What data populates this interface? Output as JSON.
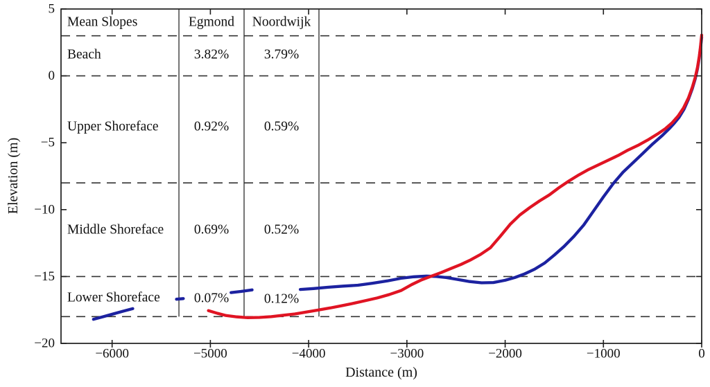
{
  "figure": {
    "xlabel": "Distance (m)",
    "ylabel": "Elevation (m)"
  },
  "colors": {
    "egmond_blue": "#1c22a0",
    "noordwijk_red": "#e01423",
    "axis_black": "#1d1d1d",
    "grid_gray": "#333333"
  },
  "table": {
    "title": "Mean Slopes",
    "columns": [
      {
        "label": "Egmond",
        "color": "#1c22a0"
      },
      {
        "label": "Noordwijk",
        "color": "#e01423"
      }
    ],
    "rows": [
      {
        "zone": "Beach",
        "egmond": "3.82%",
        "noordwijk": "3.79%"
      },
      {
        "zone": "Upper Shoreface",
        "egmond": "0.92%",
        "noordwijk": "0.59%"
      },
      {
        "zone": "Middle Shoreface",
        "egmond": "0.69%",
        "noordwijk": "0.52%"
      },
      {
        "zone": "Lower Shoreface",
        "egmond": "0.07%",
        "noordwijk": "0.12%"
      }
    ]
  },
  "chart_data": {
    "type": "line",
    "title": "",
    "xlabel": "Distance (m)",
    "ylabel": "Elevation (m)",
    "xlim": [
      -6520,
      0
    ],
    "ylim": [
      -20,
      5
    ],
    "xtick_values": [
      -6000,
      -5000,
      -4000,
      -3000,
      -2000,
      -1000,
      0
    ],
    "xtick_labels": [
      "−6000",
      "−5000",
      "−4000",
      "−3000",
      "−2000",
      "−1000",
      "0"
    ],
    "ytick_values": [
      5,
      0,
      -5,
      -10,
      -15,
      -20
    ],
    "ytick_labels": [
      "5",
      "0",
      "−5",
      "−10",
      "−15",
      "−20"
    ],
    "grid_elevations": [
      3,
      0,
      -8,
      -15,
      -18
    ],
    "grid_style": "dashed",
    "legend_position": "none (series identified by colored table header)",
    "table_divider_x": [
      -5320,
      -4657,
      -3895
    ],
    "table_divider_bottom_elevation": -18,
    "series": [
      {
        "name": "Egmond",
        "color": "#1c22a0",
        "segments": [
          [
            [
              -6190,
              -18.2
            ],
            [
              -6090,
              -18.0
            ],
            [
              -5990,
              -17.8
            ],
            [
              -5890,
              -17.6
            ],
            [
              -5790,
              -17.4
            ]
          ],
          [
            [
              -5345,
              -16.7
            ],
            [
              -5275,
              -16.65
            ]
          ],
          [
            [
              -4790,
              -16.2
            ],
            [
              -4690,
              -16.12
            ],
            [
              -4575,
              -16.0
            ]
          ],
          [
            [
              -4085,
              -15.97
            ],
            [
              -3950,
              -15.9
            ],
            [
              -3800,
              -15.8
            ],
            [
              -3650,
              -15.72
            ],
            [
              -3500,
              -15.65
            ],
            [
              -3350,
              -15.5
            ],
            [
              -3200,
              -15.33
            ],
            [
              -3050,
              -15.12
            ],
            [
              -2930,
              -15.02
            ],
            [
              -2800,
              -14.97
            ],
            [
              -2700,
              -15.0
            ],
            [
              -2600,
              -15.08
            ],
            [
              -2480,
              -15.22
            ],
            [
              -2360,
              -15.38
            ],
            [
              -2240,
              -15.47
            ],
            [
              -2120,
              -15.45
            ],
            [
              -2000,
              -15.28
            ],
            [
              -1900,
              -15.07
            ],
            [
              -1800,
              -14.8
            ],
            [
              -1700,
              -14.45
            ],
            [
              -1600,
              -14.0
            ],
            [
              -1500,
              -13.4
            ],
            [
              -1400,
              -12.75
            ],
            [
              -1300,
              -12.0
            ],
            [
              -1200,
              -11.15
            ],
            [
              -1100,
              -10.1
            ],
            [
              -1000,
              -9.05
            ],
            [
              -900,
              -8.05
            ],
            [
              -800,
              -7.2
            ],
            [
              -700,
              -6.5
            ],
            [
              -600,
              -5.8
            ],
            [
              -500,
              -5.1
            ],
            [
              -400,
              -4.45
            ],
            [
              -330,
              -3.95
            ],
            [
              -280,
              -3.55
            ],
            [
              -230,
              -3.1
            ],
            [
              -180,
              -2.5
            ],
            [
              -135,
              -1.75
            ],
            [
              -95,
              -0.95
            ],
            [
              -65,
              -0.2
            ],
            [
              -42,
              0.55
            ],
            [
              -25,
              1.35
            ],
            [
              -12,
              2.1
            ],
            [
              -4,
              2.6
            ],
            [
              0,
              2.9
            ]
          ]
        ]
      },
      {
        "name": "Noordwijk",
        "color": "#e01423",
        "segments": [
          [
            [
              -5020,
              -17.55
            ],
            [
              -4930,
              -17.75
            ],
            [
              -4840,
              -17.92
            ],
            [
              -4730,
              -18.02
            ],
            [
              -4620,
              -18.08
            ],
            [
              -4500,
              -18.06
            ],
            [
              -4380,
              -18.0
            ],
            [
              -4260,
              -17.9
            ],
            [
              -4140,
              -17.8
            ],
            [
              -4020,
              -17.65
            ],
            [
              -3900,
              -17.5
            ],
            [
              -3780,
              -17.35
            ],
            [
              -3660,
              -17.18
            ],
            [
              -3540,
              -17.0
            ],
            [
              -3420,
              -16.8
            ],
            [
              -3300,
              -16.6
            ],
            [
              -3180,
              -16.35
            ],
            [
              -3060,
              -16.05
            ],
            [
              -2950,
              -15.6
            ],
            [
              -2850,
              -15.25
            ],
            [
              -2760,
              -15.0
            ],
            [
              -2650,
              -14.7
            ],
            [
              -2550,
              -14.4
            ],
            [
              -2450,
              -14.1
            ],
            [
              -2350,
              -13.75
            ],
            [
              -2250,
              -13.35
            ],
            [
              -2150,
              -12.85
            ],
            [
              -2050,
              -12.0
            ],
            [
              -1950,
              -11.1
            ],
            [
              -1850,
              -10.4
            ],
            [
              -1750,
              -9.85
            ],
            [
              -1650,
              -9.35
            ],
            [
              -1550,
              -8.9
            ],
            [
              -1450,
              -8.35
            ],
            [
              -1350,
              -7.85
            ],
            [
              -1250,
              -7.4
            ],
            [
              -1150,
              -7.0
            ],
            [
              -1050,
              -6.65
            ],
            [
              -950,
              -6.3
            ],
            [
              -850,
              -5.95
            ],
            [
              -750,
              -5.55
            ],
            [
              -650,
              -5.2
            ],
            [
              -550,
              -4.8
            ],
            [
              -450,
              -4.35
            ],
            [
              -370,
              -3.95
            ],
            [
              -300,
              -3.5
            ],
            [
              -240,
              -3.0
            ],
            [
              -185,
              -2.4
            ],
            [
              -135,
              -1.65
            ],
            [
              -95,
              -0.85
            ],
            [
              -65,
              -0.1
            ],
            [
              -42,
              0.65
            ],
            [
              -25,
              1.45
            ],
            [
              -12,
              2.2
            ],
            [
              -4,
              2.75
            ],
            [
              0,
              3.05
            ]
          ]
        ]
      }
    ]
  }
}
